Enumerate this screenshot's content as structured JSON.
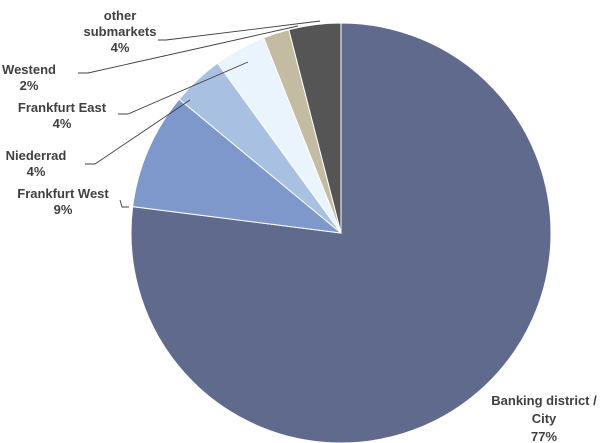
{
  "chart_data": {
    "type": "pie",
    "title": "",
    "start_angle_deg": 0,
    "direction": "clockwise",
    "legend": "none",
    "slices": [
      {
        "label_lines": [
          "Banking district /",
          "City"
        ],
        "value_label": "77%",
        "value": 77,
        "color": "#5f6a8d"
      },
      {
        "label_lines": [
          "Frankfurt West"
        ],
        "value_label": "9%",
        "value": 9,
        "color": "#7e98cc"
      },
      {
        "label_lines": [
          "Niederrad"
        ],
        "value_label": "4%",
        "value": 4,
        "color": "#a8c1e2"
      },
      {
        "label_lines": [
          "Frankfurt East"
        ],
        "value_label": "4%",
        "value": 4,
        "color": "#eaf4fd"
      },
      {
        "label_lines": [
          "Westend"
        ],
        "value_label": "2%",
        "value": 2,
        "color": "#c3bba2"
      },
      {
        "label_lines": [
          "other",
          "submarkets"
        ],
        "value_label": "4%",
        "value": 4,
        "color": "#555555"
      }
    ]
  }
}
